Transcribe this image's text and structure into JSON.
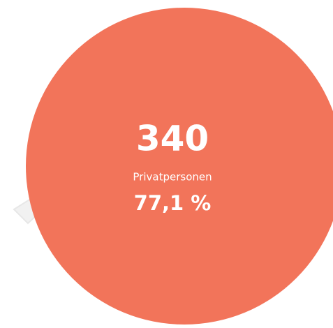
{
  "circle": {
    "count": "340",
    "label": "Privatpersonen",
    "percent": "77,1 %"
  }
}
